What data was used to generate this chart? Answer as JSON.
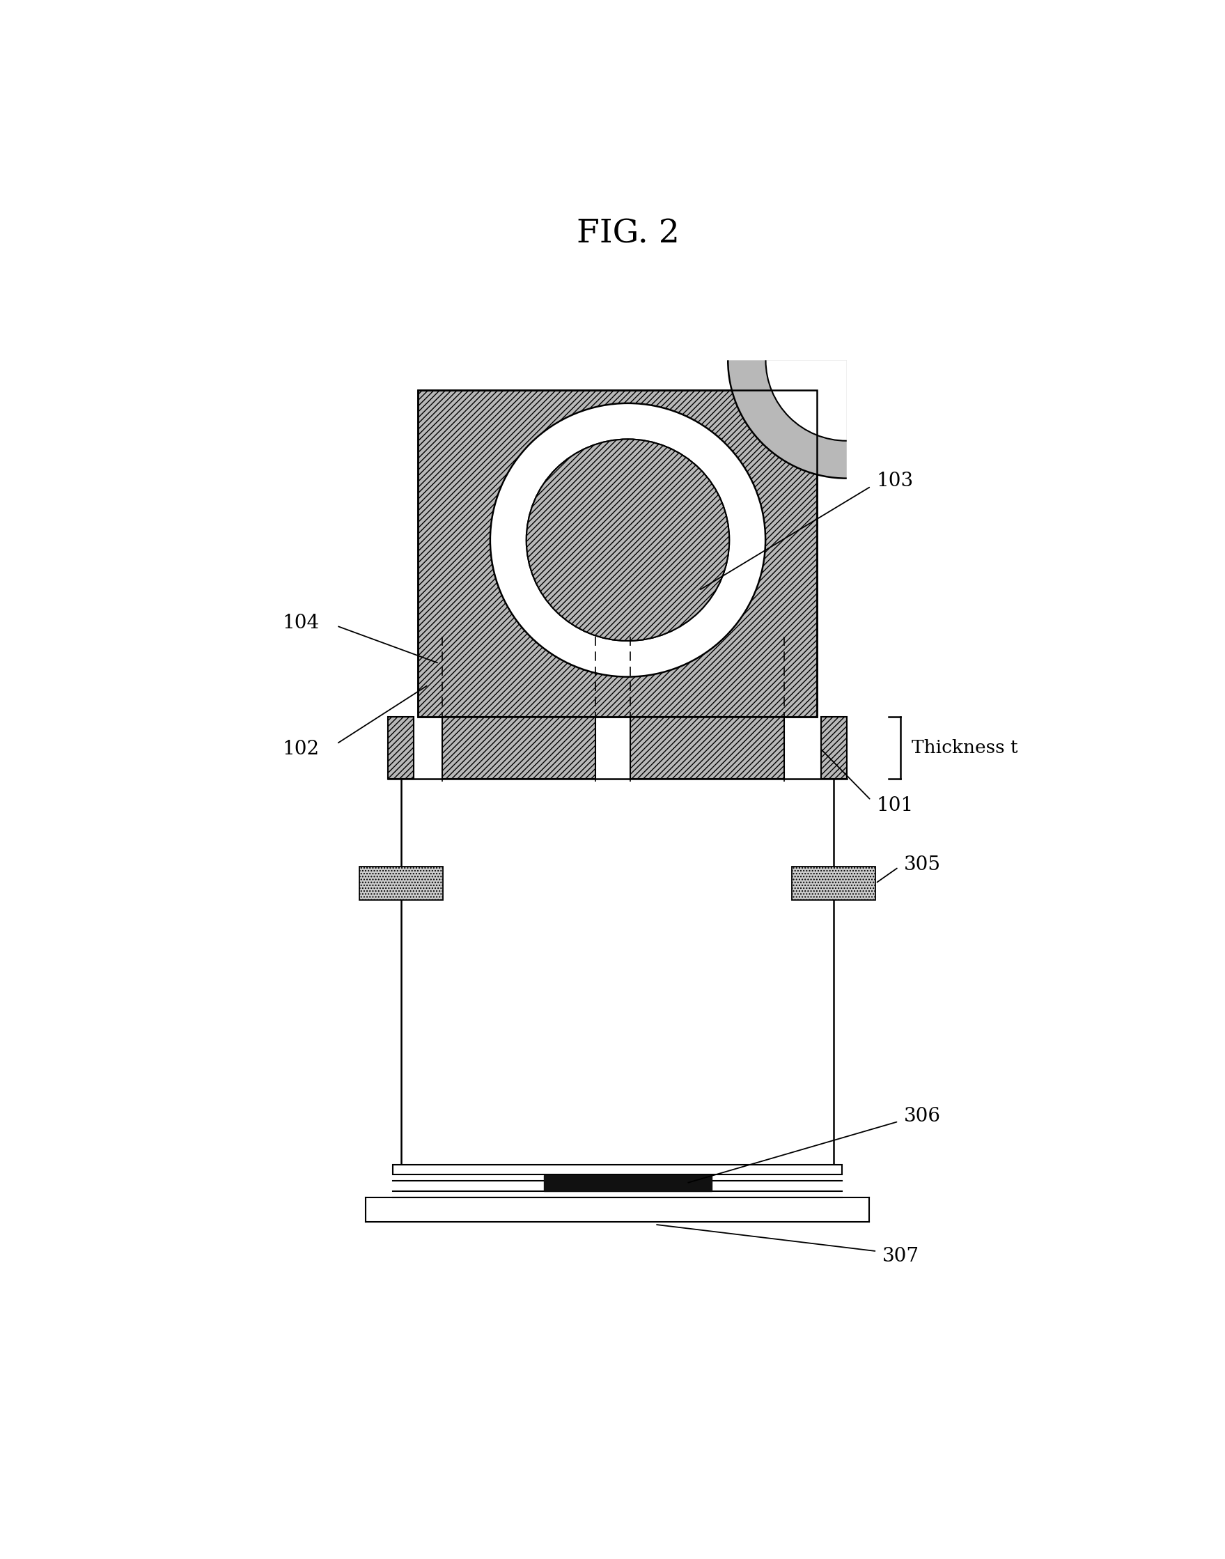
{
  "title": "FIG. 2",
  "bg_color": "#ffffff",
  "label_101": "101",
  "label_102": "102",
  "label_103": "103",
  "label_104": "104",
  "label_305": "305",
  "label_306": "306",
  "label_307": "307",
  "thickness_label": "Thickness t",
  "fig_w": 17.59,
  "fig_h": 22.38
}
